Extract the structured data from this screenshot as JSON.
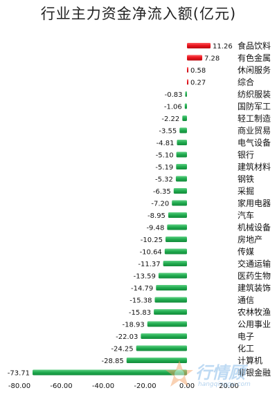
{
  "chart_data": {
    "type": "bar",
    "orientation": "horizontal",
    "title": "行业主力资金净流入额(亿元)",
    "categories": [
      "食品饮料",
      "有色金属",
      "休闲服务",
      "综合",
      "纺织服装",
      "国防军工",
      "轻工制造",
      "商业贸易",
      "电气设备",
      "银行",
      "建筑材料",
      "钢铁",
      "采掘",
      "家用电器",
      "汽车",
      "机械设备",
      "房地产",
      "传媒",
      "交通运输",
      "医药生物",
      "建筑装饰",
      "通信",
      "农林牧渔",
      "公用事业",
      "电子",
      "化工",
      "计算机",
      "非银金融"
    ],
    "values": [
      11.26,
      7.28,
      0.58,
      0.27,
      -0.83,
      -1.06,
      -2.22,
      -3.55,
      -4.81,
      -5.1,
      -5.19,
      -5.32,
      -6.35,
      -7.2,
      -8.95,
      -9.48,
      -10.25,
      -10.64,
      -11.37,
      -13.59,
      -14.79,
      -15.38,
      -15.83,
      -18.93,
      -22.03,
      -24.25,
      -28.85,
      -73.71
    ],
    "value_labels": [
      "11.26",
      "7.28",
      "0.58",
      "0.27",
      "-0.83",
      "-1.06",
      "-2.22",
      "-3.55",
      "-4.81",
      "-5.10",
      "-5.19",
      "-5.32",
      "-6.35",
      "-7.20",
      "-8.95",
      "-9.48",
      "-10.25",
      "-10.64",
      "-11.37",
      "-13.59",
      "-14.79",
      "-15.38",
      "-15.83",
      "-18.93",
      "-22.03",
      "-24.25",
      "-28.85",
      "-73.71"
    ],
    "xlim": [
      -80,
      20
    ],
    "xticks": [
      "-80.00",
      "-60.00",
      "-40.00",
      "-20.00",
      "0.00",
      "20.00"
    ],
    "xtick_values": [
      -80,
      -60,
      -40,
      -20,
      0,
      20
    ],
    "positive_color": "#e8121b",
    "negative_color": "#1faa4e",
    "grid": false,
    "legend": "none"
  },
  "watermark": {
    "text": "行情顾",
    "url": "hangqinggu.com"
  }
}
